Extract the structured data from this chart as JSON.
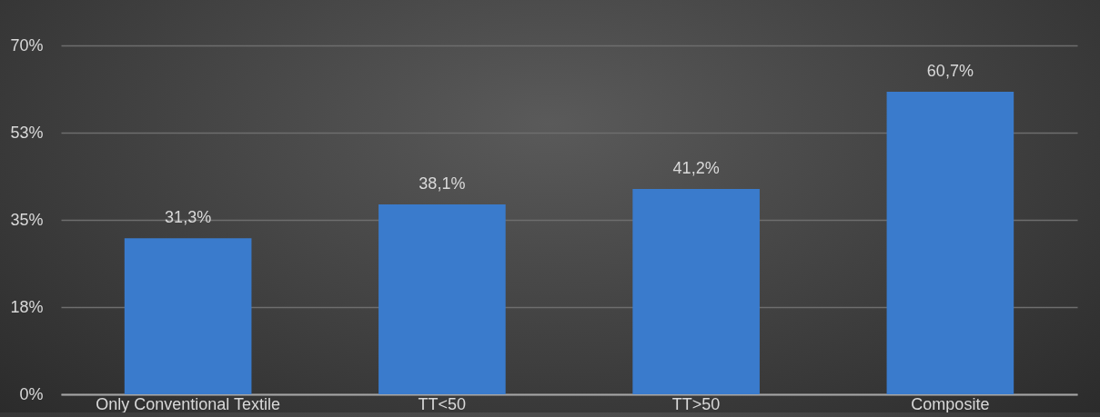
{
  "chart_data": {
    "type": "bar",
    "categories": [
      "Only Conventional Textile",
      "TT<50",
      "TT>50",
      "Composite"
    ],
    "values": [
      31.3,
      38.1,
      41.2,
      60.7
    ],
    "color": "#3a7bcc",
    "value_labels": [
      "31,3%",
      "38,1%",
      "41,2%",
      "60,7%"
    ],
    "ylim": [
      0,
      70
    ],
    "yticks": [
      {
        "value": 0,
        "label": "0%"
      },
      {
        "value": 17.5,
        "label": "18%"
      },
      {
        "value": 35,
        "label": "35%"
      },
      {
        "value": 52.5,
        "label": "53%"
      },
      {
        "value": 70,
        "label": "70%"
      }
    ],
    "grid": "y"
  }
}
